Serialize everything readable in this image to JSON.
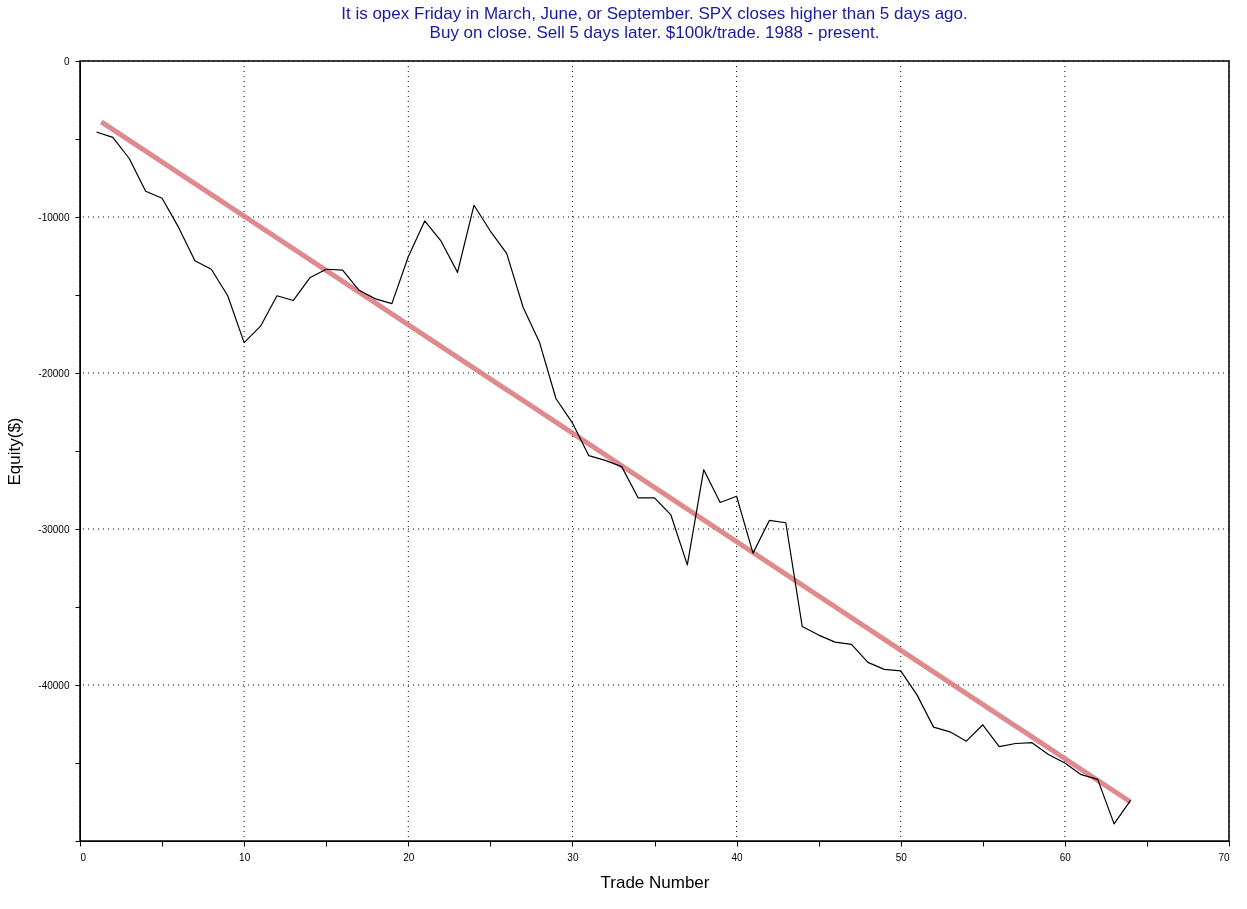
{
  "chart_data": {
    "type": "line",
    "title": [
      "It is opex Friday in March, June, or September. SPX closes higher than 5 days ago.",
      "Buy on close. Sell 5 days later. $100k/trade. 1988 - present."
    ],
    "xlabel": "Trade Number",
    "ylabel": "Equity($)",
    "x": [
      1,
      2,
      3,
      4,
      5,
      6,
      7,
      8,
      9,
      10,
      11,
      12,
      13,
      14,
      15,
      16,
      17,
      18,
      19,
      20,
      21,
      22,
      23,
      24,
      25,
      26,
      27,
      28,
      29,
      30,
      31,
      32,
      33,
      34,
      35,
      36,
      37,
      38,
      39,
      40,
      41,
      42,
      43,
      44,
      45,
      46,
      47,
      48,
      49,
      50,
      51,
      52,
      53,
      54,
      55,
      56,
      57,
      58,
      59,
      60,
      61,
      62,
      63,
      64
    ],
    "series": [
      {
        "color": "#000000",
        "values": [
          -4550,
          -4900,
          -6250,
          -8350,
          -8800,
          -10650,
          -12800,
          -13350,
          -15050,
          -18050,
          -17000,
          -15050,
          -15350,
          -13900,
          -13350,
          -13400,
          -14700,
          -15250,
          -15550,
          -12550,
          -10250,
          -11550,
          -13550,
          -9250,
          -10900,
          -12350,
          -15800,
          -18050,
          -21650,
          -23200,
          -25300,
          -25600,
          -26000,
          -28000,
          -28000,
          -29100,
          -32300,
          -26200,
          -28300,
          -27900,
          -31550,
          -29450,
          -29600,
          -36250,
          -36800,
          -37250,
          -37400,
          -38550,
          -39000,
          -39100,
          -40650,
          -42700,
          -43000,
          -43600,
          -42550,
          -43950,
          -43750,
          -43700,
          -44450,
          -45000,
          -45750,
          -46050,
          -48900,
          -47400
        ]
      },
      {
        "type": "line",
        "color": "#d9777a",
        "x": [
          1.3,
          64
        ],
        "values": [
          -3900,
          -47500
        ]
      }
    ],
    "xlim": [
      0,
      70
    ],
    "ylim": [
      -50000,
      0
    ],
    "xticks": [
      0,
      {
        "value": 5,
        "label": null
      },
      10,
      {
        "value": 15,
        "label": null
      },
      20,
      {
        "value": 25,
        "label": null
      },
      30,
      {
        "value": 35,
        "label": null
      },
      40,
      {
        "value": 45,
        "label": null
      },
      50,
      {
        "value": 55,
        "label": null
      },
      60,
      {
        "value": 65,
        "label": null
      },
      70
    ],
    "yticks": [
      0,
      {
        "value": -5000,
        "label": null
      },
      -10000,
      {
        "value": -15000,
        "label": null
      },
      -20000,
      {
        "value": -25000,
        "label": null
      },
      -30000,
      {
        "value": -35000,
        "label": null
      },
      -40000,
      {
        "value": -45000,
        "label": null
      },
      {
        "value": -50000,
        "label": null
      }
    ],
    "grid": true,
    "marker": "none",
    "line_style": "solid"
  }
}
